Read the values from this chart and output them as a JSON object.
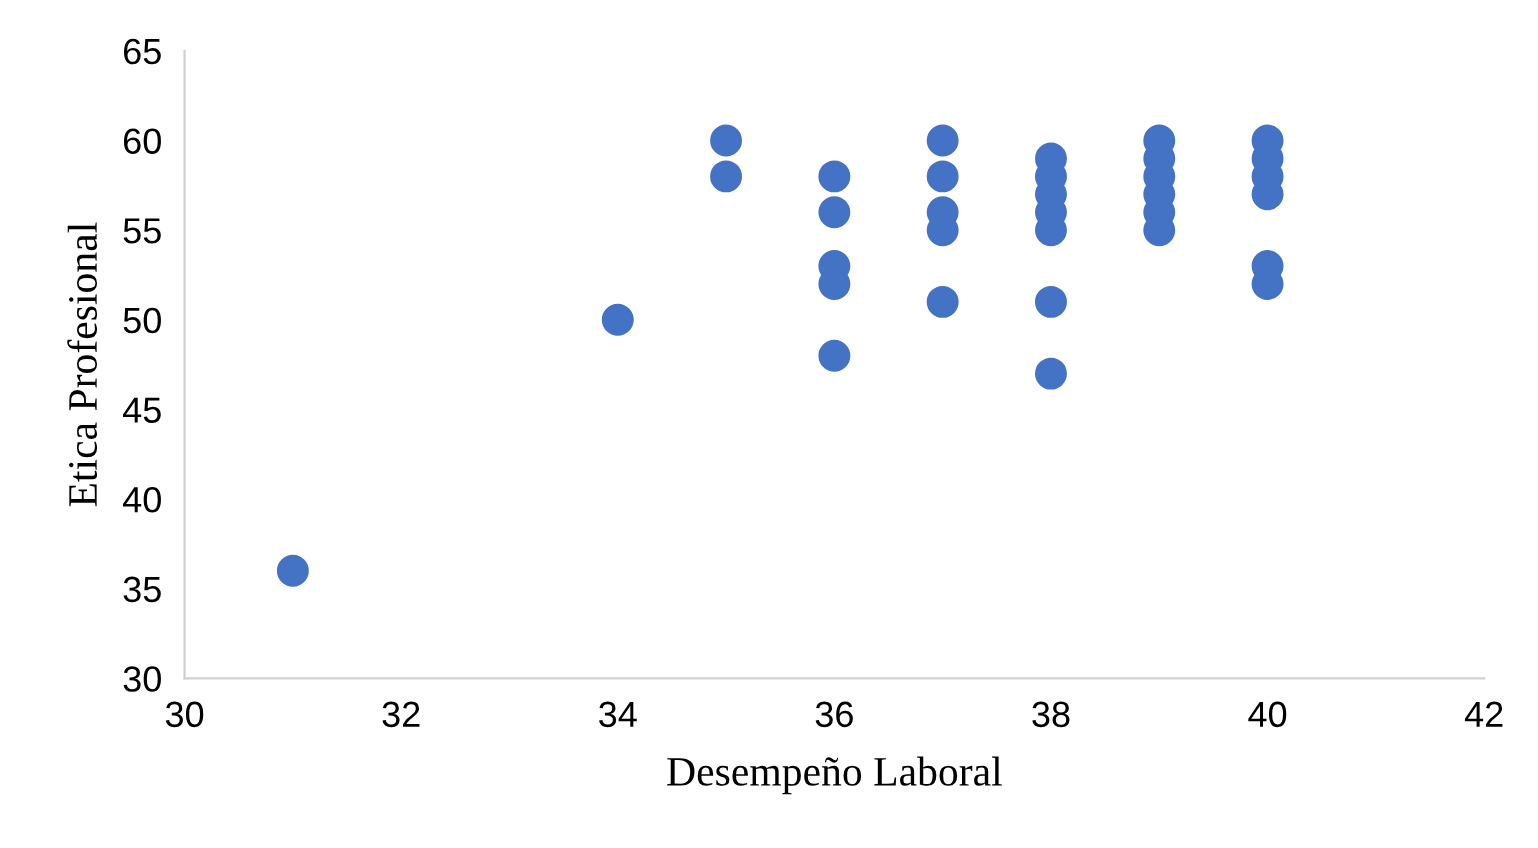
{
  "chart_data": {
    "type": "scatter",
    "xlabel": "Desempeño Laboral",
    "ylabel": "Etica Profesional",
    "series": [
      {
        "color": "#4472c4",
        "x": [
          31,
          34,
          35,
          35,
          36,
          36,
          36,
          36,
          36,
          37,
          37,
          37,
          37,
          37,
          38,
          38,
          38,
          38,
          38,
          38,
          38,
          39,
          39,
          39,
          39,
          39,
          39,
          40,
          40,
          40,
          40,
          40,
          40
        ],
        "values": [
          36,
          50,
          60,
          58,
          58,
          56,
          53,
          52,
          48,
          60,
          58,
          56,
          55,
          51,
          59,
          58,
          57,
          56,
          55,
          51,
          47,
          60,
          59,
          58,
          57,
          56,
          55,
          60,
          59,
          58,
          57,
          53,
          52
        ]
      }
    ],
    "xlim": [
      30,
      42
    ],
    "xticks": [
      30,
      32,
      34,
      36,
      38,
      40,
      42
    ],
    "ylim": [
      30,
      65
    ],
    "yticks": [
      30,
      35,
      40,
      45,
      50,
      55,
      60,
      65
    ],
    "marker": "circle",
    "grid": false
  }
}
